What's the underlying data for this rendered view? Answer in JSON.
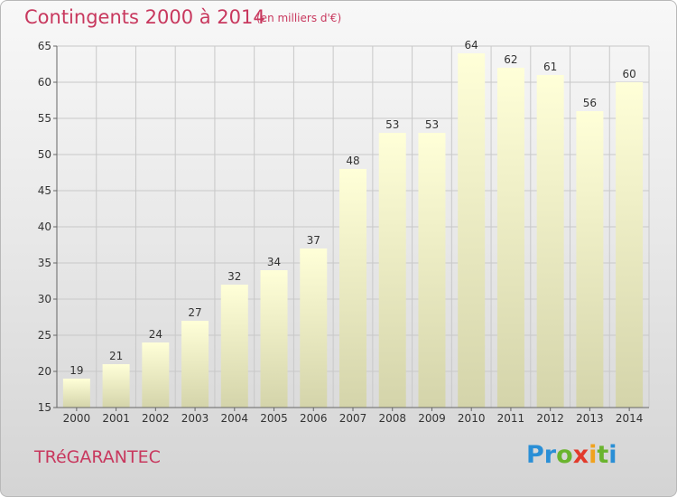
{
  "title": "Contingents 2000 à 2014",
  "unit": "(en milliers d'€)",
  "commune": "TRéGARANTEC",
  "logo": {
    "letters": [
      {
        "char": "P",
        "color": "#2a8fd6"
      },
      {
        "char": "r",
        "color": "#2a8fd6"
      },
      {
        "char": "o",
        "color": "#6ab42e"
      },
      {
        "char": "x",
        "color": "#e23a2b"
      },
      {
        "char": "i",
        "color": "#f1a21d"
      },
      {
        "char": "t",
        "color": "#6ab42e"
      },
      {
        "char": "i",
        "color": "#2a8fd6"
      }
    ]
  },
  "chart_data": {
    "type": "bar",
    "title": "Contingents 2000 à 2014",
    "ylabel": "(en milliers d'€)",
    "categories": [
      "2000",
      "2001",
      "2002",
      "2003",
      "2004",
      "2005",
      "2006",
      "2007",
      "2008",
      "2009",
      "2010",
      "2011",
      "2012",
      "2013",
      "2014"
    ],
    "values": [
      19,
      21,
      24,
      27,
      32,
      34,
      37,
      48,
      53,
      53,
      64,
      62,
      61,
      56,
      60
    ],
    "ylim": [
      15,
      65
    ],
    "yticks": [
      15,
      20,
      25,
      30,
      35,
      40,
      45,
      50,
      55,
      60,
      65
    ],
    "grid": true,
    "colors": {
      "bar_top": "#ffffd8",
      "bar_bottom": "#d4d4aa",
      "grid": "#c8c8c8",
      "axis": "#666666",
      "text": "#c8385e"
    }
  }
}
